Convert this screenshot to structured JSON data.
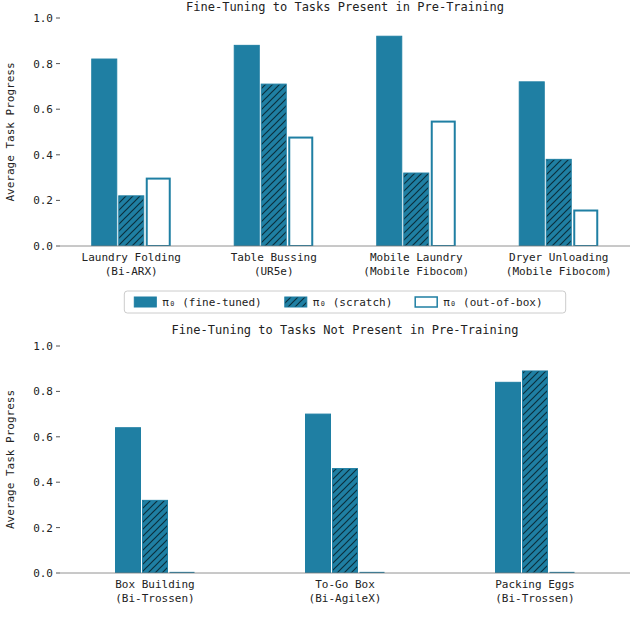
{
  "chart_data": [
    {
      "type": "bar",
      "title": "Fine-Tuning to Tasks Present in Pre-Training",
      "y_label": "Average Task Progress",
      "categories": [
        "Laundry Folding\n(Bi-ARX)",
        "Table Bussing\n(UR5e)",
        "Mobile Laundry\n(Mobile Fibocom)",
        "Dryer Unloading\n(Mobile Fibocom)"
      ],
      "series": [
        {
          "name": "π₀ (fine-tuned)",
          "color": "#1f7fa3",
          "line_style": "solid",
          "values": [
            0.82,
            0.88,
            0.92,
            0.72
          ]
        },
        {
          "name": "π₀ (scratch)",
          "color": "#1f7fa3",
          "line_style": "hatched",
          "values": [
            0.22,
            0.71,
            0.32,
            0.38
          ]
        },
        {
          "name": "π₀ (out-of-box)",
          "color": "#1f7fa3",
          "line_style": "outline",
          "values": [
            0.3,
            0.48,
            0.55,
            0.16
          ]
        }
      ],
      "ylim": [
        0,
        1
      ],
      "yticks": [
        {
          "value": 0,
          "label": "0.0"
        },
        {
          "value": 0.2,
          "label": "0.2"
        },
        {
          "value": 0.4,
          "label": "0.4"
        },
        {
          "value": 0.6,
          "label": "0.6"
        },
        {
          "value": 0.8,
          "label": "0.8"
        },
        {
          "value": 1,
          "label": "1.0"
        }
      ],
      "legend": "bottom"
    },
    {
      "type": "bar",
      "title": "Fine-Tuning to Tasks Not Present in Pre-Training",
      "y_label": "Average Task Progress",
      "categories": [
        "Box Building\n(Bi-Trossen)",
        "To-Go Box\n(Bi-AgileX)",
        "Packing Eggs\n(Bi-Trossen)"
      ],
      "series": [
        {
          "color": "#1f7fa3",
          "line_style": "solid",
          "values": [
            0.64,
            0.7,
            0.84
          ]
        },
        {
          "color": "#1f7fa3",
          "line_style": "hatched",
          "values": [
            0.32,
            0.46,
            0.89
          ]
        },
        {
          "color": "#1f7fa3",
          "line_style": "outline",
          "values": [
            0.005,
            0.005,
            0.005
          ]
        }
      ],
      "ylim": [
        0,
        1
      ],
      "yticks": [
        {
          "value": 0,
          "label": "0.0"
        },
        {
          "value": 0.2,
          "label": "0.2"
        },
        {
          "value": 0.4,
          "label": "0.4"
        },
        {
          "value": 0.6,
          "label": "0.6"
        },
        {
          "value": 0.8,
          "label": "0.8"
        },
        {
          "value": 1,
          "label": "1.0"
        }
      ]
    }
  ]
}
